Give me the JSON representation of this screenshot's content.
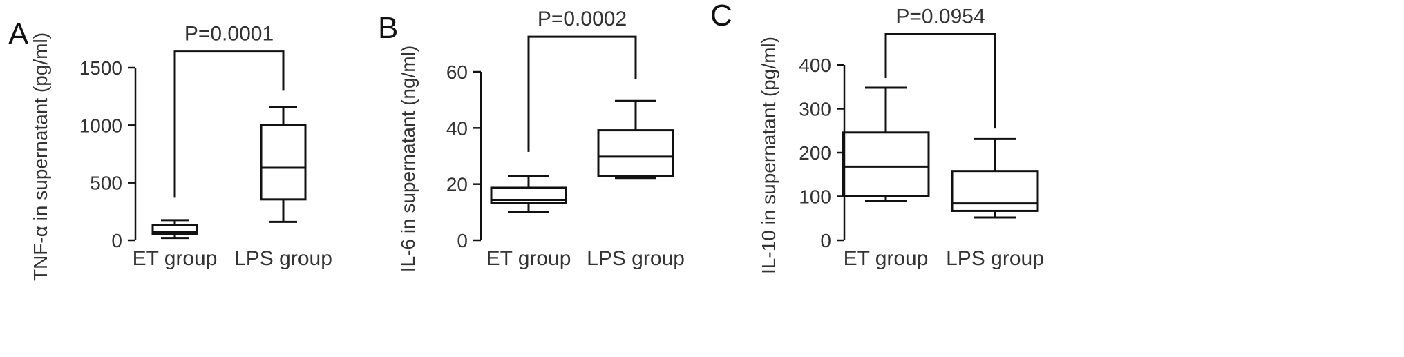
{
  "chart_data": [
    {
      "type": "box",
      "panel_label": "A",
      "ylabel": "TNF-α in supernatant (pg/ml)",
      "ylim": [
        0,
        1500
      ],
      "yticks": [
        0,
        500,
        1000,
        1500
      ],
      "categories": [
        "ET group",
        "LPS group"
      ],
      "boxes": [
        {
          "min": 20,
          "q1": 55,
          "median": 75,
          "q3": 130,
          "max": 175
        },
        {
          "min": 160,
          "q1": 355,
          "median": 630,
          "q3": 1000,
          "max": 1160
        }
      ],
      "significance": {
        "label": "P=0.0001",
        "between": [
          0,
          1
        ],
        "level": 1640,
        "left_end": 370,
        "right_end": 1300
      }
    },
    {
      "type": "box",
      "panel_label": "B",
      "ylabel": "IL-6 in supernatant (ng/ml)",
      "ylim": [
        0,
        60
      ],
      "yticks": [
        0,
        20,
        40,
        60
      ],
      "categories": [
        "ET group",
        "LPS group"
      ],
      "boxes": [
        {
          "min": 10,
          "q1": 13.3,
          "median": 14.4,
          "q3": 18.7,
          "max": 22.8
        },
        {
          "min": 22.2,
          "q1": 22.9,
          "median": 29.8,
          "q3": 39.2,
          "max": 49.6
        }
      ],
      "significance": {
        "label": "P=0.0002",
        "between": [
          0,
          1
        ],
        "level": 72.5,
        "left_end": 31.5,
        "right_end": 57.5
      }
    },
    {
      "type": "box",
      "panel_label": "C",
      "ylabel": "IL-10 in supernatant (pg/ml)",
      "ylim": [
        0,
        400
      ],
      "yticks": [
        0,
        100,
        200,
        300,
        400
      ],
      "categories": [
        "ET group",
        "LPS group"
      ],
      "boxes": [
        {
          "min": 89,
          "q1": 100,
          "median": 168,
          "q3": 246,
          "max": 348
        },
        {
          "min": 52,
          "q1": 67,
          "median": 84,
          "q3": 158,
          "max": 231
        }
      ],
      "significance": {
        "label": "P=0.0954",
        "between": [
          0,
          1
        ],
        "level": 470,
        "left_end": 370,
        "right_end": 255
      }
    }
  ]
}
